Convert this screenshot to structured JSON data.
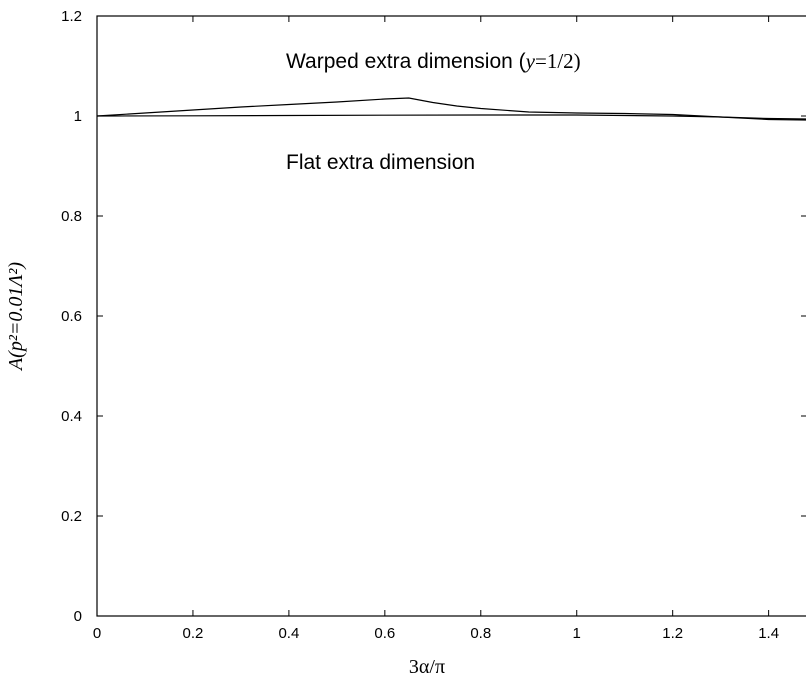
{
  "chart_data": {
    "type": "line",
    "title": "",
    "xlabel": "3α/π",
    "ylabel": "A(p²=0.01Λ²)",
    "xlim": [
      0,
      1.48
    ],
    "ylim": [
      0,
      1.2
    ],
    "x_ticks": [
      "0",
      "0.2",
      "0.4",
      "0.6",
      "0.8",
      "1",
      "1.2",
      "1.4"
    ],
    "y_ticks": [
      "0",
      "0.2",
      "0.4",
      "0.6",
      "0.8",
      "1",
      "1.2"
    ],
    "grid": false,
    "series": [
      {
        "name": "Warped extra dimension (y=1/2)",
        "x": [
          0,
          0.1,
          0.2,
          0.3,
          0.4,
          0.5,
          0.6,
          0.65,
          0.7,
          0.75,
          0.8,
          0.9,
          1.0,
          1.1,
          1.2,
          1.3,
          1.4,
          1.48
        ],
        "y": [
          1.0,
          1.006,
          1.012,
          1.018,
          1.023,
          1.028,
          1.034,
          1.036,
          1.027,
          1.02,
          1.015,
          1.008,
          1.006,
          1.005,
          1.003,
          0.998,
          0.993,
          0.992
        ]
      },
      {
        "name": "Flat extra dimension",
        "x": [
          0,
          0.2,
          0.4,
          0.6,
          0.8,
          1.0,
          1.2,
          1.3,
          1.4,
          1.48
        ],
        "y": [
          1.0,
          1.0005,
          1.001,
          1.0015,
          1.002,
          1.002,
          1.0,
          0.998,
          0.995,
          0.994
        ]
      }
    ],
    "annotations": [
      {
        "text": "Warped extra dimension (",
        "italic": "y",
        "suffix": "=1/2)"
      },
      {
        "text": "Flat extra dimension"
      }
    ]
  }
}
